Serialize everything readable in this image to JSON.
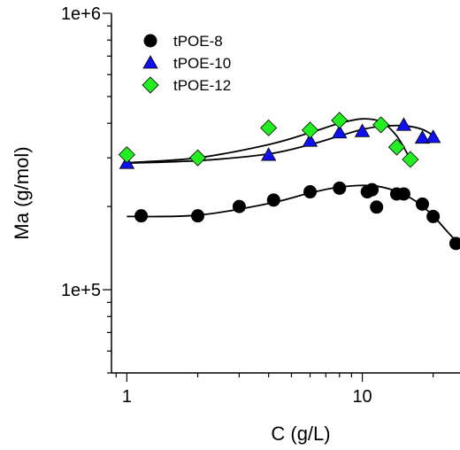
{
  "chart_data": {
    "type": "scatter",
    "xlabel": "C (g/L)",
    "ylabel": "Ma (g/mol)",
    "xscale": "log",
    "yscale": "log",
    "xlim": [
      0.86,
      26
    ],
    "ylim": [
      50000,
      1000000
    ],
    "x_ticks": [
      {
        "value": 1,
        "label": "1"
      },
      {
        "value": 10,
        "label": "10"
      }
    ],
    "y_ticks": [
      {
        "value": 100000,
        "label": "1e+5"
      },
      {
        "value": 1000000,
        "label": "1e+6"
      }
    ],
    "grid": false,
    "legend_position": "top-left",
    "series": [
      {
        "name": "tPOE-8",
        "marker": "circle",
        "color": "#000000",
        "points": [
          [
            1.15,
            185000
          ],
          [
            2.0,
            185000
          ],
          [
            3.0,
            200000
          ],
          [
            4.2,
            211000
          ],
          [
            6.0,
            226000
          ],
          [
            8.0,
            233000
          ],
          [
            10.5,
            226000
          ],
          [
            11.0,
            230000
          ],
          [
            11.5,
            199000
          ],
          [
            14.0,
            222000
          ],
          [
            15.0,
            222000
          ],
          [
            18.0,
            204000
          ],
          [
            20.0,
            184000
          ],
          [
            25.0,
            147000
          ]
        ],
        "fit": [
          [
            1.0,
            184000
          ],
          [
            2.0,
            186000
          ],
          [
            4.0,
            205000
          ],
          [
            6.0,
            224000
          ],
          [
            8.0,
            235000
          ],
          [
            11.0,
            238000
          ],
          [
            14.0,
            227000
          ],
          [
            17.0,
            208000
          ],
          [
            20.0,
            185000
          ],
          [
            23.0,
            162000
          ],
          [
            26.0,
            145000
          ]
        ]
      },
      {
        "name": "tPOE-10",
        "marker": "triangle",
        "color": "#1010ee",
        "points": [
          [
            1.0,
            287000
          ],
          [
            4.0,
            307000
          ],
          [
            6.0,
            345000
          ],
          [
            8.0,
            370000
          ],
          [
            10.0,
            374000
          ],
          [
            15.0,
            394000
          ],
          [
            18.0,
            354000
          ],
          [
            20.0,
            356000
          ]
        ],
        "fit": [
          [
            1.0,
            287000
          ],
          [
            2.0,
            293000
          ],
          [
            4.0,
            310000
          ],
          [
            6.0,
            335000
          ],
          [
            8.0,
            360000
          ],
          [
            10.0,
            380000
          ],
          [
            12.0,
            390000
          ],
          [
            15.0,
            392000
          ],
          [
            18.0,
            380000
          ],
          [
            21.0,
            352000
          ]
        ]
      },
      {
        "name": "tPOE-12",
        "marker": "diamond",
        "color": "#22ee22",
        "points": [
          [
            1.0,
            308000
          ],
          [
            2.0,
            300000
          ],
          [
            4.0,
            385000
          ],
          [
            6.0,
            378000
          ],
          [
            8.0,
            410000
          ],
          [
            12.0,
            395000
          ],
          [
            14.0,
            328000
          ],
          [
            16.0,
            296000
          ]
        ],
        "fit": [
          [
            1.0,
            288000
          ],
          [
            2.0,
            300000
          ],
          [
            4.0,
            335000
          ],
          [
            6.0,
            370000
          ],
          [
            8.0,
            400000
          ],
          [
            10.0,
            415000
          ],
          [
            12.0,
            405000
          ],
          [
            14.0,
            360000
          ],
          [
            16.0,
            296000
          ]
        ]
      }
    ]
  }
}
